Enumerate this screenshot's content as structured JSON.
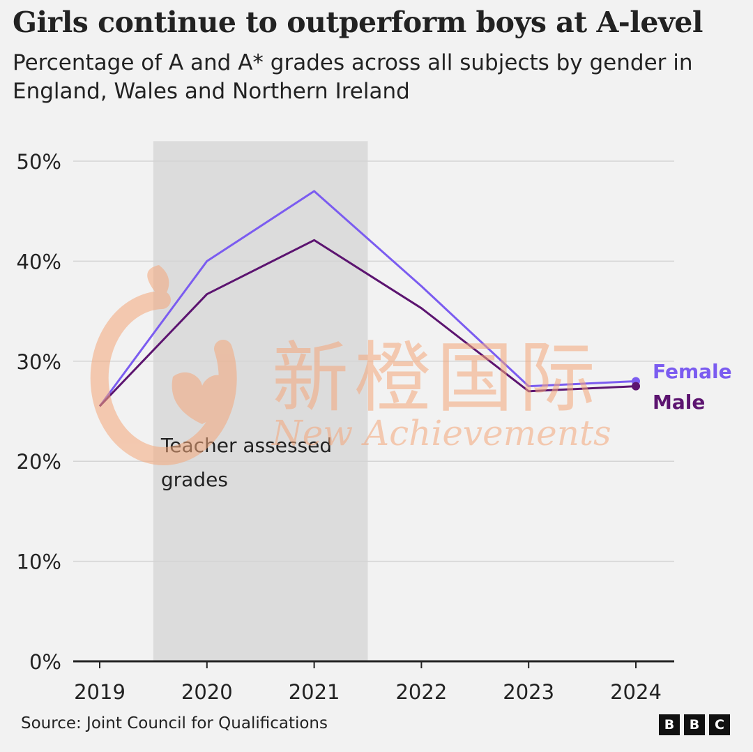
{
  "chart_data": {
    "type": "line",
    "title": "Girls continue to outperform boys at A-level",
    "subtitle": "Percentage of A and A* grades across all subjects by gender in England, Wales and Northern Ireland",
    "x": [
      "2019",
      "2020",
      "2021",
      "2022",
      "2023",
      "2024"
    ],
    "y_ticks": [
      "0%",
      "10%",
      "20%",
      "30%",
      "40%",
      "50%"
    ],
    "ylim": [
      0,
      52
    ],
    "grid": true,
    "legend": "right",
    "series": [
      {
        "name": "Female",
        "values": [
          25.5,
          40.0,
          47.0,
          37.5,
          27.5,
          28.0
        ],
        "color": "#7b5cf0"
      },
      {
        "name": "Male",
        "values": [
          25.5,
          36.7,
          42.1,
          35.3,
          27.0,
          27.5
        ],
        "color": "#5c1470"
      }
    ],
    "annotation": {
      "text_line1": "Teacher assessed",
      "text_line2": "grades",
      "from": "2019",
      "to": "2021"
    },
    "colors": {
      "shade": "#dcdcdc",
      "grid": "#d4d4d4",
      "axis": "#222222",
      "text": "#222222"
    }
  },
  "footer": {
    "source": "Source: Joint Council for Qualifications",
    "logo": [
      "B",
      "B",
      "C"
    ]
  },
  "watermark": {
    "text_cn": "新橙国际",
    "text_en": "New Achievements",
    "color": "#f4a77a"
  }
}
